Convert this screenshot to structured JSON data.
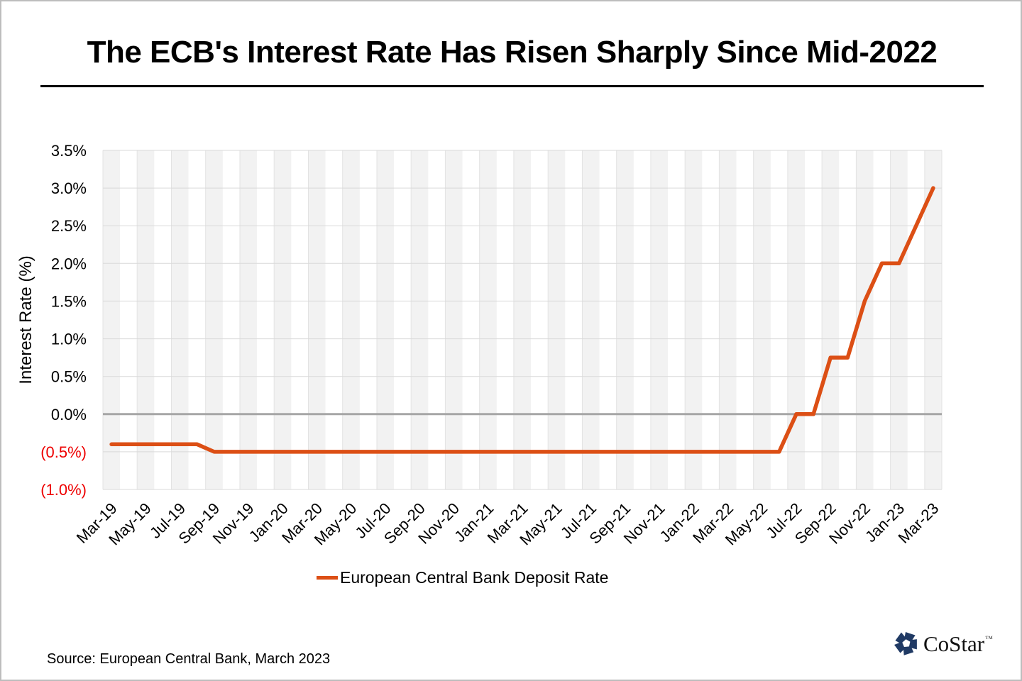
{
  "title": "The ECB's Interest Rate Has Risen Sharply Since Mid-2022",
  "legend": {
    "label": "European Central Bank Deposit Rate"
  },
  "source": {
    "text": "Source: European Central Bank, March 2023"
  },
  "branding": {
    "logo_text": "CoStar",
    "trademark": "™",
    "logo_color": "#203A64"
  },
  "colors": {
    "line": "#DC4F15",
    "zero_line": "#A6A6A6",
    "h_gridline": "#D9D9D9",
    "v_gridline": "#E3E3E3",
    "band_fill": "#F2F2F2",
    "negative_tick_label": "#EE0000",
    "tick_label": "#000000"
  },
  "chart_data": {
    "type": "line",
    "title": "The ECB's Interest Rate Has Risen Sharply Since Mid-2022",
    "xlabel": "",
    "ylabel": "Interest Rate (%)",
    "ylim": [
      -1.0,
      3.5
    ],
    "ytick_step": 0.5,
    "ytick_labels": [
      "3.5%",
      "3.0%",
      "2.5%",
      "2.0%",
      "1.5%",
      "1.0%",
      "0.5%",
      "0.0%",
      "(0.5%)",
      "(1.0%)"
    ],
    "grid": true,
    "legend_position": "bottom",
    "xtick_every": 2,
    "xtick_labels": [
      "Mar-19",
      "May-19",
      "Jul-19",
      "Sep-19",
      "Nov-19",
      "Jan-20",
      "Mar-20",
      "May-20",
      "Jul-20",
      "Sep-20",
      "Nov-20",
      "Jan-21",
      "Mar-21",
      "May-21",
      "Jul-21",
      "Sep-21",
      "Nov-21",
      "Jan-22",
      "Mar-22",
      "May-22",
      "Jul-22",
      "Sep-22",
      "Nov-22",
      "Jan-23",
      "Mar-23"
    ],
    "x": [
      "Mar-19",
      "Apr-19",
      "May-19",
      "Jun-19",
      "Jul-19",
      "Aug-19",
      "Sep-19",
      "Oct-19",
      "Nov-19",
      "Dec-19",
      "Jan-20",
      "Feb-20",
      "Mar-20",
      "Apr-20",
      "May-20",
      "Jun-20",
      "Jul-20",
      "Aug-20",
      "Sep-20",
      "Oct-20",
      "Nov-20",
      "Dec-20",
      "Jan-21",
      "Feb-21",
      "Mar-21",
      "Apr-21",
      "May-21",
      "Jun-21",
      "Jul-21",
      "Aug-21",
      "Sep-21",
      "Oct-21",
      "Nov-21",
      "Dec-21",
      "Jan-22",
      "Feb-22",
      "Mar-22",
      "Apr-22",
      "May-22",
      "Jun-22",
      "Jul-22",
      "Aug-22",
      "Sep-22",
      "Oct-22",
      "Nov-22",
      "Dec-22",
      "Jan-23",
      "Feb-23",
      "Mar-23"
    ],
    "series": [
      {
        "name": "European Central Bank Deposit Rate",
        "values": [
          -0.4,
          -0.4,
          -0.4,
          -0.4,
          -0.4,
          -0.4,
          -0.5,
          -0.5,
          -0.5,
          -0.5,
          -0.5,
          -0.5,
          -0.5,
          -0.5,
          -0.5,
          -0.5,
          -0.5,
          -0.5,
          -0.5,
          -0.5,
          -0.5,
          -0.5,
          -0.5,
          -0.5,
          -0.5,
          -0.5,
          -0.5,
          -0.5,
          -0.5,
          -0.5,
          -0.5,
          -0.5,
          -0.5,
          -0.5,
          -0.5,
          -0.5,
          -0.5,
          -0.5,
          -0.5,
          -0.5,
          0.0,
          0.0,
          0.75,
          0.75,
          1.5,
          2.0,
          2.0,
          2.5,
          3.0
        ]
      }
    ]
  }
}
